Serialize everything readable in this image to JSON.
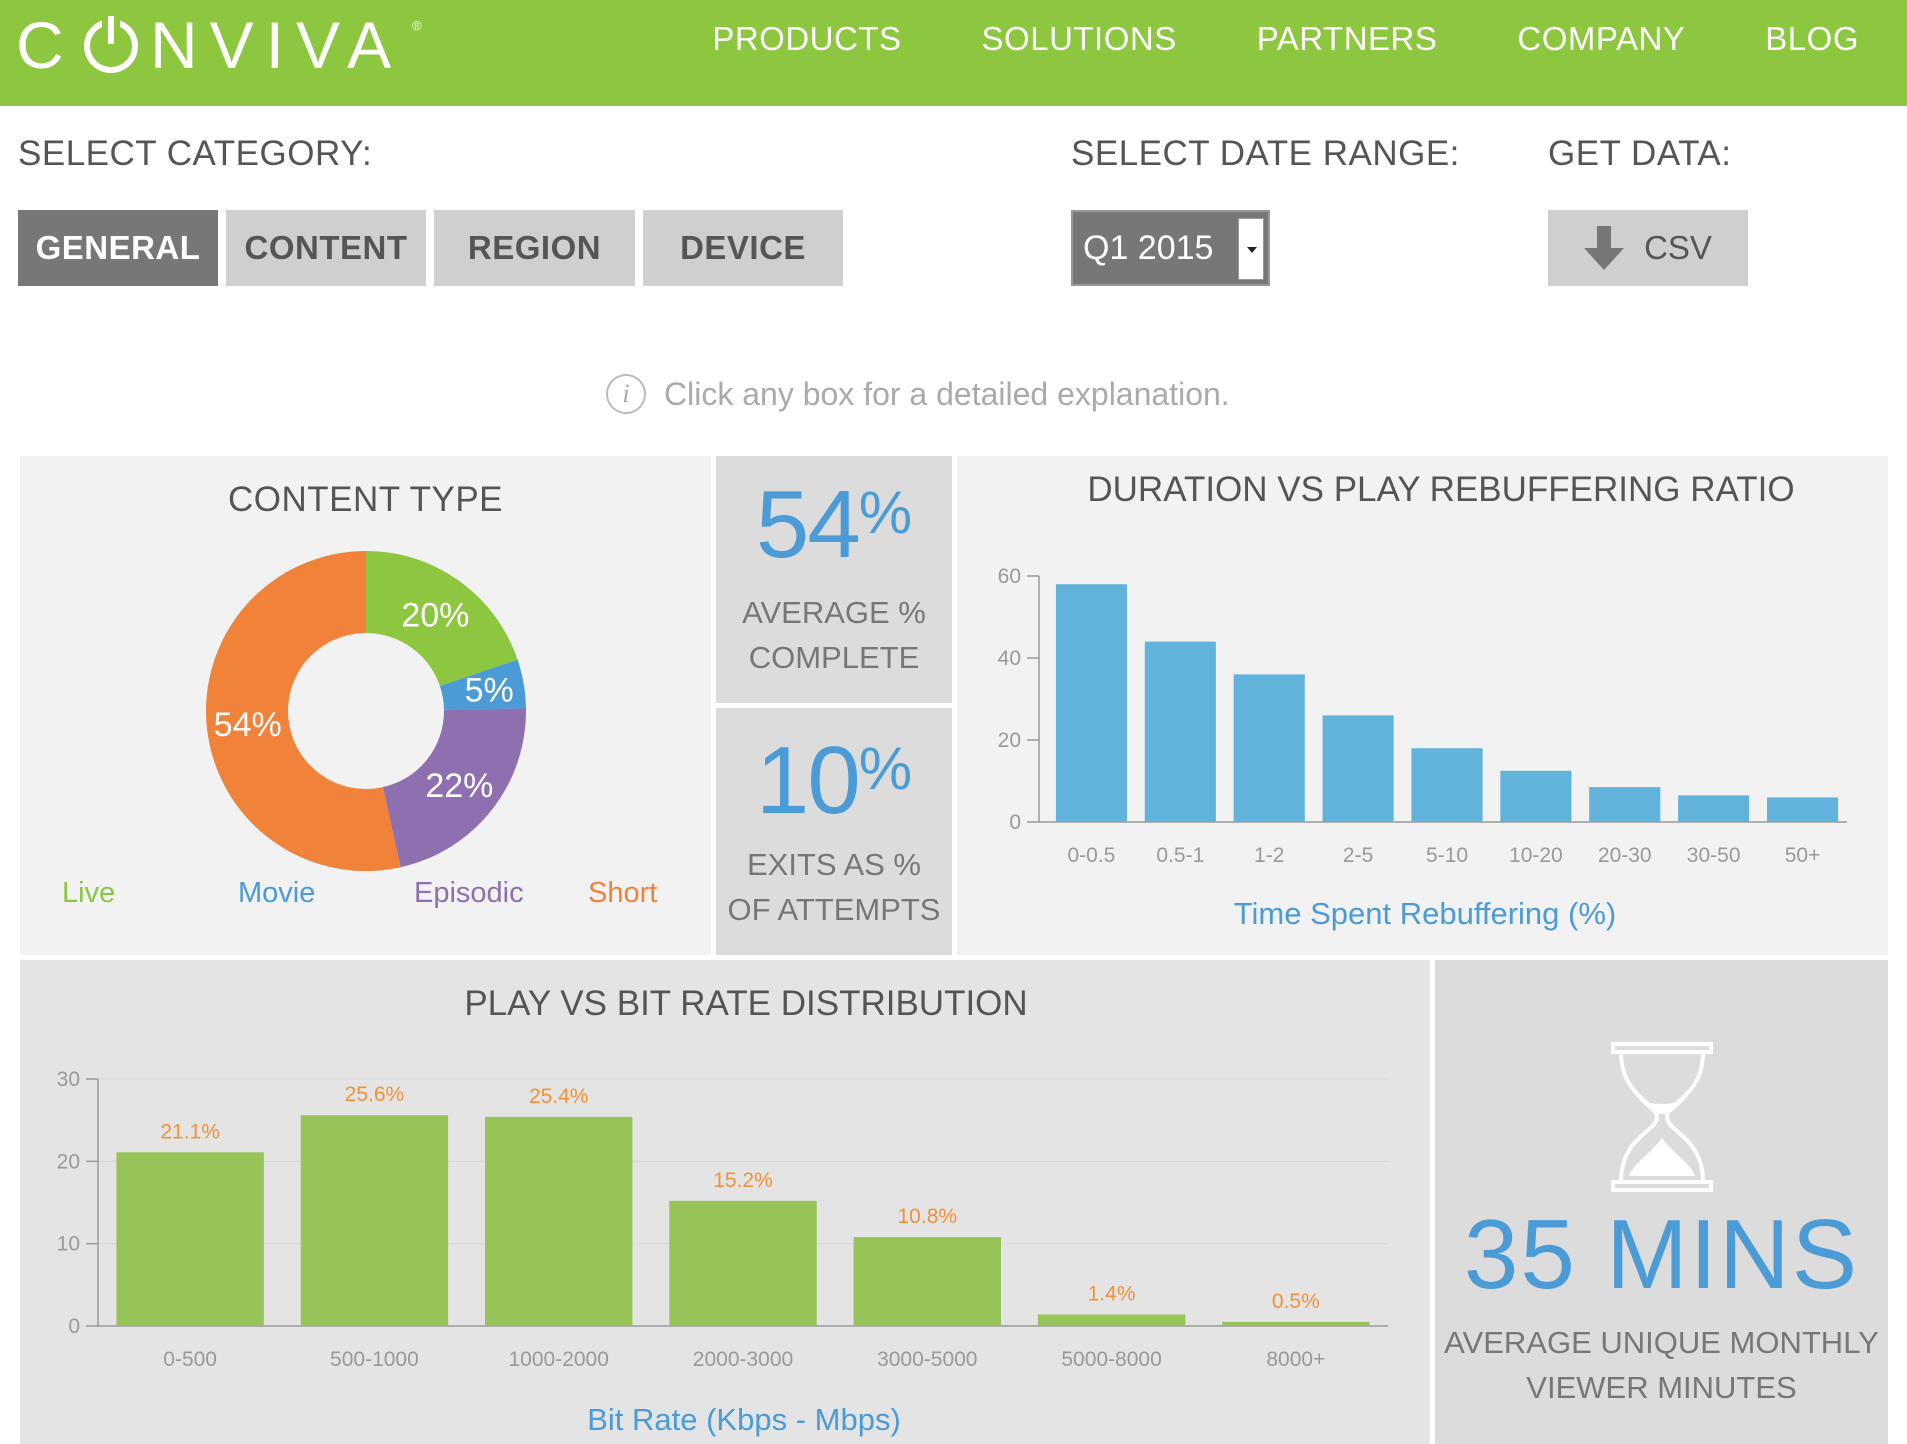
{
  "brand": {
    "logo_text": "CONVIVA",
    "registered": "®"
  },
  "nav": {
    "items": [
      "PRODUCTS",
      "SOLUTIONS",
      "PARTNERS",
      "COMPANY",
      "BLOG"
    ]
  },
  "controls": {
    "category_label": "SELECT CATEGORY:",
    "categories": [
      "GENERAL",
      "CONTENT",
      "REGION",
      "DEVICE"
    ],
    "active_category": "GENERAL",
    "date_label": "SELECT DATE RANGE:",
    "date_value": "Q1 2015",
    "data_label": "GET DATA:",
    "csv_label": "CSV"
  },
  "hint": {
    "text": "Click any box for a detailed explanation."
  },
  "content_type": {
    "title": "CONTENT TYPE",
    "legend": [
      {
        "label": "Live",
        "color": "#8dc63f"
      },
      {
        "label": "Movie",
        "color": "#4a9bd6"
      },
      {
        "label": "Episodic",
        "color": "#8e6fb0"
      },
      {
        "label": "Short",
        "color": "#f0823a"
      }
    ]
  },
  "stats": {
    "avg_complete": {
      "value": "54",
      "unit": "%",
      "caption_1": "AVERAGE %",
      "caption_2": "COMPLETE"
    },
    "exits": {
      "value": "10",
      "unit": "%",
      "caption_1": "EXITS AS %",
      "caption_2": "OF ATTEMPTS"
    },
    "viewer_minutes": {
      "value": "35 MINS",
      "caption_1": "AVERAGE UNIQUE MONTHLY",
      "caption_2": "VIEWER MINUTES"
    }
  },
  "chart_data": [
    {
      "type": "pie",
      "title": "CONTENT TYPE",
      "donut": true,
      "categories": [
        "Live",
        "Movie",
        "Episodic",
        "Short"
      ],
      "values": [
        20,
        5,
        22,
        54
      ],
      "labels": [
        "20%",
        "5%",
        "22%",
        "54%"
      ],
      "colors": [
        "#8dc63f",
        "#4a9bd6",
        "#8e6fb0",
        "#f0823a"
      ]
    },
    {
      "type": "bar",
      "title": "DURATION VS PLAY REBUFFERING RATIO",
      "xlabel": "Time Spent Rebuffering (%)",
      "ylabel": "",
      "categories": [
        "0-0.5",
        "0.5-1",
        "1-2",
        "2-5",
        "5-10",
        "10-20",
        "20-30",
        "30-50",
        "50+"
      ],
      "values": [
        58,
        44,
        36,
        26,
        18,
        12.5,
        8.5,
        6.5,
        6
      ],
      "ylim": [
        0,
        60
      ],
      "yticks": [
        0,
        20,
        40,
        60
      ],
      "color": "#62b3db"
    },
    {
      "type": "bar",
      "title": "PLAY VS BIT RATE DISTRIBUTION",
      "xlabel": "Bit Rate (Kbps - Mbps)",
      "ylabel": "",
      "categories": [
        "0-500",
        "500-1000",
        "1000-2000",
        "2000-3000",
        "3000-5000",
        "5000-8000",
        "8000+"
      ],
      "values": [
        21.1,
        25.6,
        25.4,
        15.2,
        10.8,
        1.4,
        0.5
      ],
      "data_labels": [
        "21.1%",
        "25.6%",
        "25.4%",
        "15.2%",
        "10.8%",
        "1.4%",
        "0.5%"
      ],
      "ylim": [
        0,
        30
      ],
      "yticks": [
        0,
        10,
        20,
        30
      ],
      "grid": true,
      "color": "#97c459",
      "label_color": "#f0923a"
    }
  ]
}
